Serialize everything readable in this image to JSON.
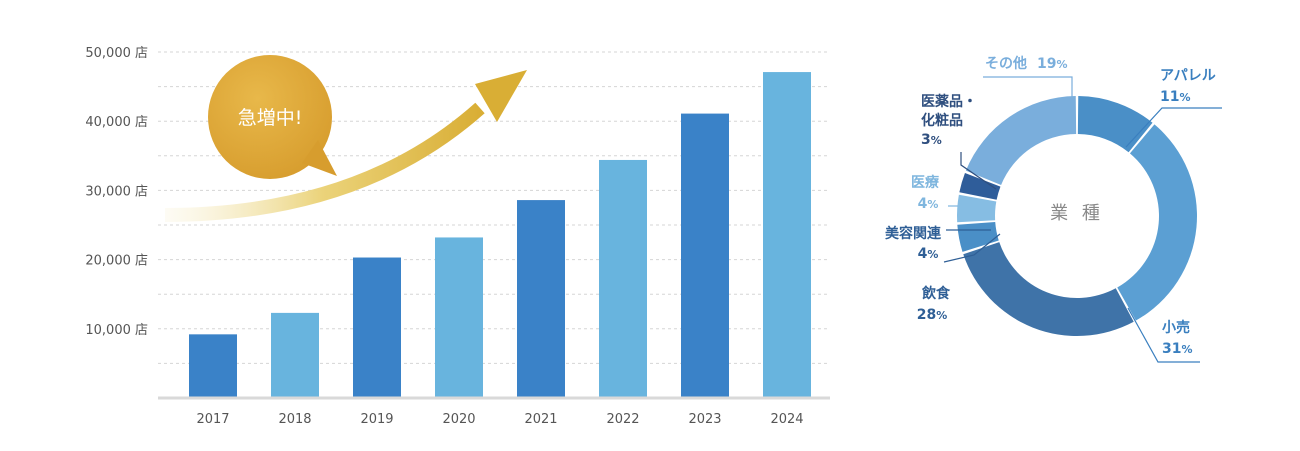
{
  "chart_data": [
    {
      "type": "bar",
      "categories": [
        "2017",
        "2018",
        "2019",
        "2020",
        "2021",
        "2022",
        "2023",
        "2024"
      ],
      "values": [
        9200,
        12300,
        20300,
        23200,
        28600,
        34400,
        41100,
        47100
      ],
      "ylim": [
        0,
        50000
      ],
      "yticks": [
        {
          "value": 10000,
          "label": "10,000 店"
        },
        {
          "value": 20000,
          "label": "20,000 店"
        },
        {
          "value": 30000,
          "label": "30,000 店"
        },
        {
          "value": 40000,
          "label": "40,000 店"
        },
        {
          "value": 50000,
          "label": "50,000 店"
        }
      ],
      "bar_colors": [
        "#3a82c8",
        "#68b4de"
      ],
      "grid": true,
      "annotation": "急増中!"
    },
    {
      "type": "pie",
      "center_label": "業 種",
      "slices": [
        {
          "label": "アパレル",
          "pct_value": "11",
          "value": 11,
          "color": "#4a8fc7",
          "label_color": "#3a7fbf"
        },
        {
          "label": "小売",
          "pct_value": "31",
          "value": 31,
          "color": "#5b9fd3",
          "label_color": "#3a7fbf"
        },
        {
          "label": "飲食",
          "pct_value": "28",
          "value": 28,
          "color": "#3f73a8",
          "label_color": "#2f5f96"
        },
        {
          "label": "美容関連",
          "pct_value": "4",
          "value": 4,
          "color": "#4a8fc7",
          "label_color": "#2f5f96"
        },
        {
          "label": "医療",
          "pct_value": "4",
          "value": 4,
          "color": "#86bde3",
          "label_color": "#7fb6de"
        },
        {
          "label": "医薬品・化粧品",
          "pct_value": "3",
          "value": 3,
          "color": "#2f5d9a",
          "label_color": "#2f4f7f"
        },
        {
          "label": "その他",
          "pct_value": "19",
          "value": 19,
          "color": "#7aaedc",
          "label_color": "#7aaedc"
        }
      ],
      "pct_unit": "%"
    }
  ]
}
